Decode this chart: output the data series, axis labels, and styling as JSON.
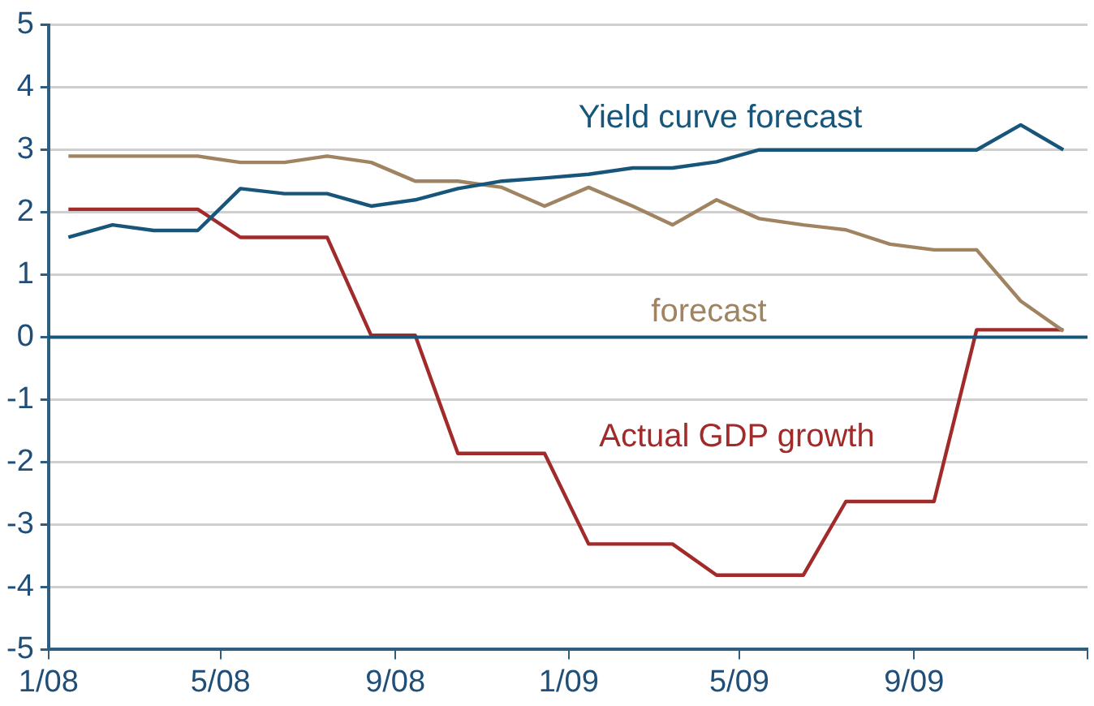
{
  "chart_data": {
    "type": "line",
    "x": [
      "2008-01-15",
      "2008-02-15",
      "2008-03-15",
      "2008-04-15",
      "2008-05-15",
      "2008-06-15",
      "2008-07-15",
      "2008-08-15",
      "2008-09-15",
      "2008-10-15",
      "2008-11-15",
      "2008-12-15",
      "2009-01-15",
      "2009-02-15",
      "2009-03-15",
      "2009-04-15",
      "2009-05-15",
      "2009-06-15",
      "2009-07-15",
      "2009-08-15",
      "2009-09-15",
      "2009-10-15",
      "2009-11-15",
      "2009-12-15"
    ],
    "series": [
      {
        "name": "Yield curve forecast",
        "color": "#17557a",
        "values": [
          1.6,
          1.8,
          1.71,
          1.71,
          2.38,
          2.3,
          2.3,
          2.1,
          2.2,
          2.38,
          2.5,
          2.55,
          2.61,
          2.71,
          2.71,
          2.81,
          3.0,
          3.0,
          3.0,
          3.0,
          3.0,
          3.0,
          3.4,
          3.0
        ]
      },
      {
        "name": "forecast",
        "color": "#a08462",
        "values": [
          2.9,
          2.9,
          2.9,
          2.9,
          2.8,
          2.8,
          2.9,
          2.8,
          2.5,
          2.5,
          2.4,
          2.1,
          2.4,
          2.1,
          1.8,
          2.2,
          1.9,
          1.8,
          1.72,
          1.49,
          1.4,
          1.4,
          0.58,
          0.1
        ]
      },
      {
        "name": "Actual GDP growth",
        "color": "#a12b2b",
        "values": [
          2.05,
          2.05,
          2.05,
          2.05,
          1.6,
          1.6,
          1.6,
          0.03,
          0.03,
          -1.86,
          -1.86,
          -1.86,
          -3.31,
          -3.31,
          -3.31,
          -3.81,
          -3.81,
          -3.81,
          -2.63,
          -2.63,
          -2.63,
          0.12,
          0.12,
          0.12
        ]
      }
    ],
    "xlim": [
      "2008-01",
      "2010-01"
    ],
    "xticks": [
      {
        "value": "2008-01",
        "label": "1/08"
      },
      {
        "value": "2008-05",
        "label": "5/08"
      },
      {
        "value": "2008-09",
        "label": "9/08"
      },
      {
        "value": "2009-01",
        "label": "1/09"
      },
      {
        "value": "2009-05",
        "label": "5/09"
      },
      {
        "value": "2009-09",
        "label": "9/09"
      },
      {
        "value": "2010-01",
        "label": null
      }
    ],
    "ylim": [
      -5,
      5
    ],
    "yticks": [
      -5,
      -4,
      -3,
      -2,
      -1,
      0,
      1,
      2,
      3,
      4,
      5
    ],
    "ref_lines": [
      {
        "axis": "y",
        "value": 0,
        "color": "#17557a"
      }
    ],
    "grid": "y",
    "legend": false,
    "marker": "none",
    "line_style": "solid"
  }
}
